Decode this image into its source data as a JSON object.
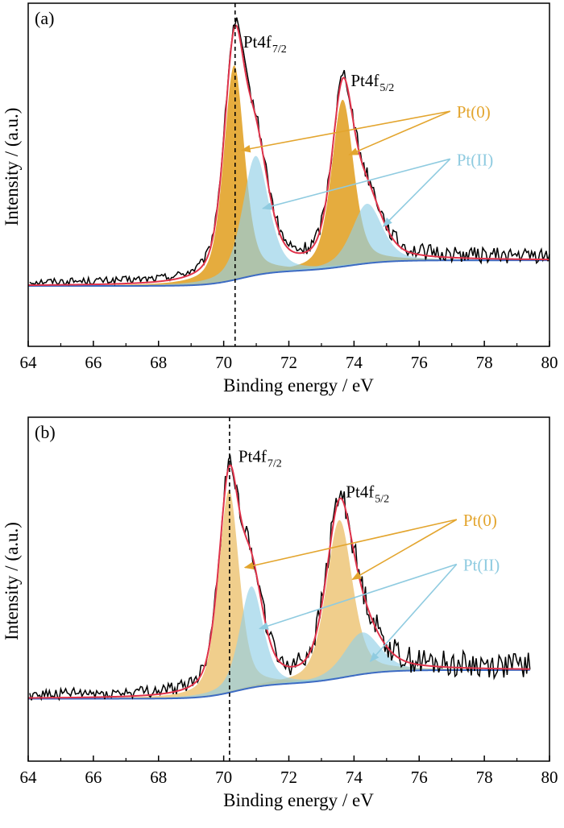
{
  "colors": {
    "pt0": "#E3A52E",
    "pt2": "#92D0E6",
    "fit": "#E0334B",
    "background_line": "#3D6BC3",
    "raw": "#000000",
    "pt0_label": "#E3A52E",
    "pt2_label": "#8FCBE0"
  },
  "chart_data": [
    {
      "type": "line",
      "panel_label": "(a)",
      "xlabel": "Binding energy / eV",
      "ylabel": "Intensity / (a.u.)",
      "xlim": [
        64,
        80
      ],
      "ylim": [
        0,
        1.0
      ],
      "xticks": [
        "64",
        "66",
        "68",
        "70",
        "72",
        "74",
        "76",
        "78",
        "80"
      ],
      "reference_line_x": 70.35,
      "background": {
        "start": 0.1,
        "step1": 0.05,
        "step2": 0.036
      },
      "components": [
        {
          "name": "Pt(0)",
          "center": 70.32,
          "height": 0.72,
          "fwhm": 0.75,
          "color_key": "pt0"
        },
        {
          "name": "Pt(0)",
          "center": 73.65,
          "height": 0.56,
          "fwhm": 0.8,
          "color_key": "pt0"
        },
        {
          "name": "Pt(II)",
          "center": 70.98,
          "height": 0.4,
          "fwhm": 0.95,
          "color_key": "pt2"
        },
        {
          "name": "Pt(II)",
          "center": 74.4,
          "height": 0.2,
          "fwhm": 1.1,
          "color_key": "pt2"
        }
      ],
      "noise_amplitude": 0.012,
      "peak_labels": [
        {
          "main": "Pt4f",
          "sub": "7/2",
          "x": 70.6,
          "y": 0.9
        },
        {
          "main": "Pt4f",
          "sub": "5/2",
          "x": 73.9,
          "y": 0.77
        }
      ],
      "state_labels": [
        {
          "text": "Pt(0)",
          "x": 77.1,
          "y": 0.67,
          "color_key": "pt0_label",
          "arrows": [
            {
              "x": 70.55,
              "y": 0.555
            },
            {
              "x": 73.85,
              "y": 0.54
            }
          ]
        },
        {
          "text": "Pt(II)",
          "x": 77.1,
          "y": 0.51,
          "color_key": "pt2_label",
          "arrows": [
            {
              "x": 71.2,
              "y": 0.36
            },
            {
              "x": 74.9,
              "y": 0.3
            }
          ]
        }
      ]
    },
    {
      "type": "line",
      "panel_label": "(b)",
      "xlabel": "Binding energy / eV",
      "ylabel": "Intensity / (a.u.)",
      "xlim": [
        64,
        80
      ],
      "ylim": [
        0,
        1.0
      ],
      "xticks": [
        "64",
        "66",
        "68",
        "70",
        "72",
        "74",
        "76",
        "78",
        "80"
      ],
      "data_xmax": 79.4,
      "reference_line_x": 70.18,
      "background": {
        "start": 0.115,
        "step1": 0.05,
        "step2": 0.046
      },
      "components": [
        {
          "name": "Pt(0)",
          "center": 70.16,
          "height": 0.68,
          "fwhm": 0.75,
          "color_key": "pt0"
        },
        {
          "name": "Pt(0)",
          "center": 73.55,
          "height": 0.53,
          "fwhm": 0.95,
          "color_key": "pt0"
        },
        {
          "name": "Pt(II)",
          "center": 70.85,
          "height": 0.34,
          "fwhm": 0.85,
          "color_key": "pt2"
        },
        {
          "name": "Pt(II)",
          "center": 74.25,
          "height": 0.14,
          "fwhm": 1.3,
          "color_key": "pt2"
        }
      ],
      "noise_amplitude": 0.02,
      "peak_labels": [
        {
          "main": "Pt4f",
          "sub": "7/2",
          "x": 70.45,
          "y": 0.91
        },
        {
          "main": "Pt4f",
          "sub": "5/2",
          "x": 73.75,
          "y": 0.79
        }
      ],
      "state_labels": [
        {
          "text": "Pt(0)",
          "x": 77.3,
          "y": 0.7,
          "color_key": "pt0_label",
          "arrows": [
            {
              "x": 70.65,
              "y": 0.555
            },
            {
              "x": 73.95,
              "y": 0.515
            }
          ]
        },
        {
          "text": "Pt(II)",
          "x": 77.3,
          "y": 0.55,
          "color_key": "pt2_label",
          "arrows": [
            {
              "x": 71.1,
              "y": 0.35
            },
            {
              "x": 74.5,
              "y": 0.24
            }
          ]
        }
      ]
    }
  ]
}
